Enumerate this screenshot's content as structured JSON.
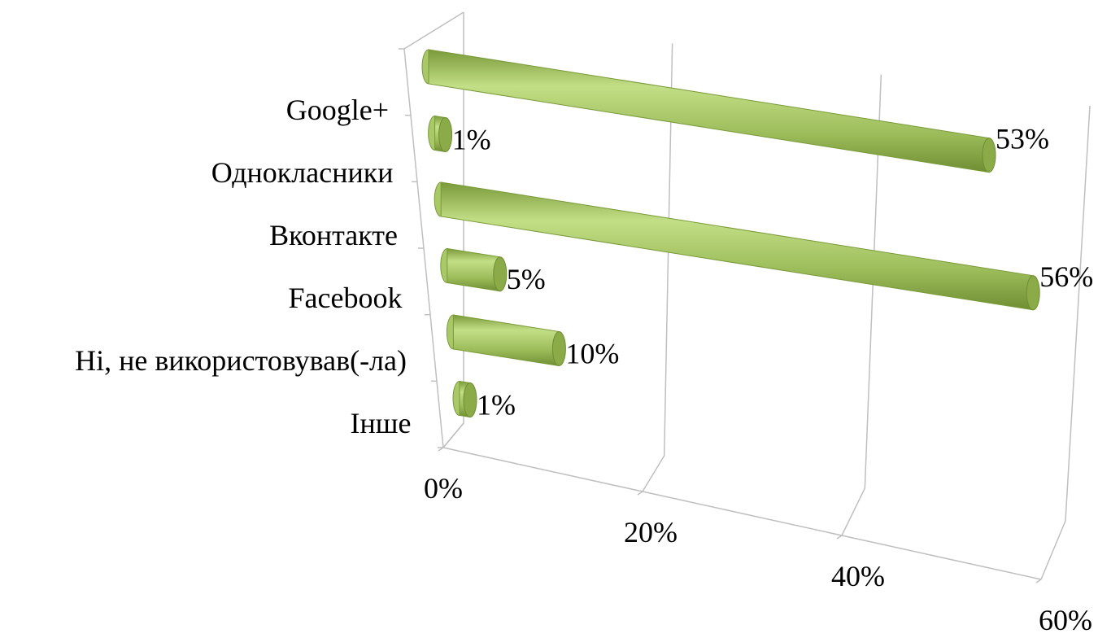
{
  "chart_data": {
    "type": "bar3d",
    "categories": [
      "Google+",
      "Однокласники",
      "Вконтакте",
      "Facebook",
      "Ні, не використовував(-ла)",
      "Інше"
    ],
    "values": [
      53,
      1,
      56,
      5,
      10,
      1
    ],
    "value_labels": [
      "53%",
      "1%",
      "56%",
      "5%",
      "10%",
      "1%"
    ],
    "color": "#9bbb59",
    "xlim": [
      0,
      60
    ],
    "xticks": [
      {
        "value": 0,
        "label": "0%"
      },
      {
        "value": 20,
        "label": "20%"
      },
      {
        "value": 40,
        "label": "40%"
      },
      {
        "value": 60,
        "label": "60%"
      }
    ],
    "grid": true
  }
}
